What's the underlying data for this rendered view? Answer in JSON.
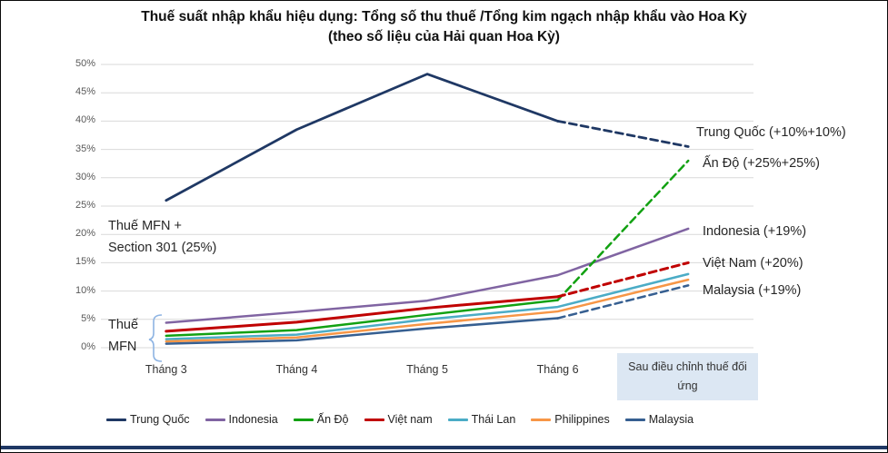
{
  "page": {
    "title_line1": "Thuế suất nhập khẩu hiệu dụng: Tổng số thu thuế /Tổng kim ngạch nhập khẩu vào Hoa Kỳ",
    "title_line2": "(theo số liệu của Hải quan Hoa Kỳ)"
  },
  "chart_data": {
    "type": "line",
    "title": "Thuế suất nhập khẩu hiệu dụng: Tổng số thu thuế /Tổng kim ngạch nhập khẩu vào Hoa Kỳ (theo số liệu của Hải quan Hoa Kỳ)",
    "categories": [
      "Tháng 3",
      "Tháng 4",
      "Tháng 5",
      "Tháng 6",
      "Sau điều chỉnh thuế đối ứng"
    ],
    "series": [
      {
        "name": "Trung Quốc",
        "color": "#1F3864",
        "width": 2.8,
        "dashed_from": 3,
        "values": [
          26,
          38.5,
          48.3,
          40,
          35.5
        ]
      },
      {
        "name": "Indonesia",
        "color": "#8064A2",
        "width": 2.5,
        "dashed_from": null,
        "values": [
          4.4,
          6.3,
          8.3,
          12.8,
          21
        ]
      },
      {
        "name": "Ấn Độ",
        "color": "#12A112",
        "width": 2.5,
        "dashed_from": 3,
        "values": [
          2.1,
          3.1,
          5.8,
          8.4,
          33
        ]
      },
      {
        "name": "Việt nam",
        "color": "#C00000",
        "width": 3,
        "dashed_from": 3,
        "values": [
          2.9,
          4.5,
          7.0,
          9.0,
          15
        ]
      },
      {
        "name": "Thái Lan",
        "color": "#4BACC6",
        "width": 2.5,
        "dashed_from": null,
        "values": [
          1.5,
          2.3,
          5.0,
          7.2,
          13
        ]
      },
      {
        "name": "Philippines",
        "color": "#F79646",
        "width": 2.5,
        "dashed_from": null,
        "values": [
          1.1,
          1.8,
          4.2,
          6.4,
          12
        ]
      },
      {
        "name": "Malaysia",
        "color": "#365F91",
        "width": 2.5,
        "dashed_from": 3,
        "values": [
          0.7,
          1.3,
          3.4,
          5.2,
          11
        ]
      }
    ],
    "ylim": [
      0,
      50
    ],
    "ytick_step": 5,
    "ytick_format": "percent",
    "grid": "horizontal",
    "gridline_color": "#D9D9D9",
    "legend_position": "bottom",
    "highlight_last_category": true,
    "highlight_box_color": "#DCE7F3",
    "right_labels": [
      {
        "text": "Trung Quốc (+10%+10%)",
        "y_pct": 37.7
      },
      {
        "text": "Ấn Độ (+25%+25%)",
        "y_pct": 32.2
      },
      {
        "text": "Indonesia (+19%)",
        "y_pct": 20.2
      },
      {
        "text": "Việt Nam (+20%)",
        "y_pct": 14.6
      },
      {
        "text": "Malaysia (+19%)",
        "y_pct": 9.8
      }
    ],
    "annotations": [
      {
        "id": "mfn301",
        "line1": "Thuế MFN +",
        "line2": "Section 301 (25%)"
      },
      {
        "id": "mfn",
        "line1": "Thuế",
        "line2": "MFN"
      }
    ]
  },
  "decor": {
    "brace_color": "#8EB4E3",
    "bottom_bar_color": "#1F3864"
  }
}
